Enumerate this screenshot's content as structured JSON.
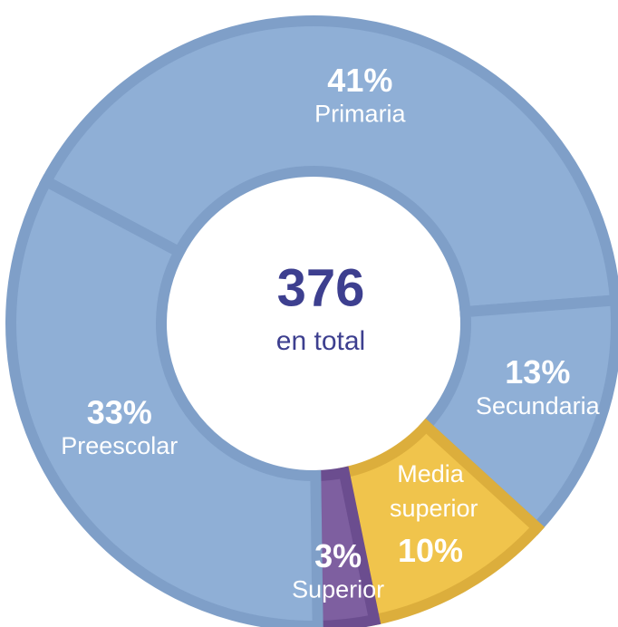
{
  "chart_data": {
    "type": "donut",
    "categories": [
      "Primaria",
      "Secundaria",
      "Media superior",
      "Superior",
      "Preescolar"
    ],
    "values": [
      41,
      13,
      10,
      3,
      33
    ],
    "value_labels": [
      "41%",
      "13%",
      "10%",
      "3%",
      "33%"
    ],
    "colors": [
      "#8fafd6",
      "#8fafd6",
      "#f0c44c",
      "#7e5fa0",
      "#8fafd6"
    ],
    "total": 376,
    "total_label": "en total"
  }
}
